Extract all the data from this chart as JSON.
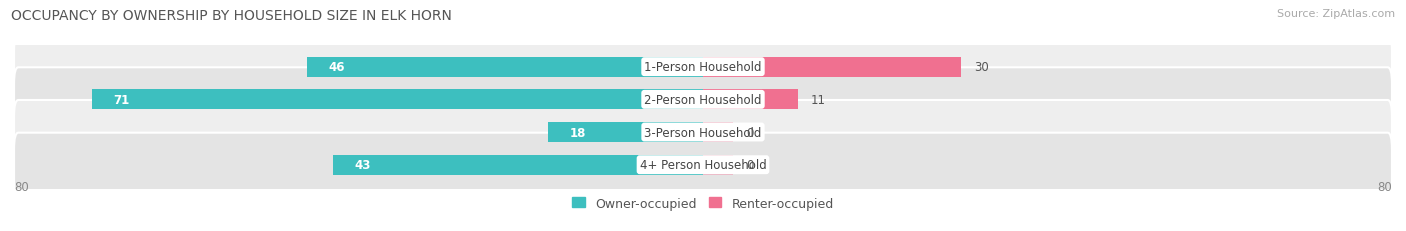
{
  "title": "OCCUPANCY BY OWNERSHIP BY HOUSEHOLD SIZE IN ELK HORN",
  "source": "Source: ZipAtlas.com",
  "categories": [
    "1-Person Household",
    "2-Person Household",
    "3-Person Household",
    "4+ Person Household"
  ],
  "owner_values": [
    46,
    71,
    18,
    43
  ],
  "renter_values": [
    30,
    11,
    0,
    0
  ],
  "owner_color": "#3DBFBF",
  "renter_color": "#F07090",
  "row_bg_color_odd": "#EEEEEE",
  "row_bg_color_even": "#E4E4E4",
  "xlim": 80,
  "legend_owner": "Owner-occupied",
  "legend_renter": "Renter-occupied",
  "axis_label_left": "80",
  "axis_label_right": "80",
  "title_fontsize": 10,
  "source_fontsize": 8,
  "legend_fontsize": 9,
  "category_fontsize": 8.5,
  "value_fontsize": 8.5
}
